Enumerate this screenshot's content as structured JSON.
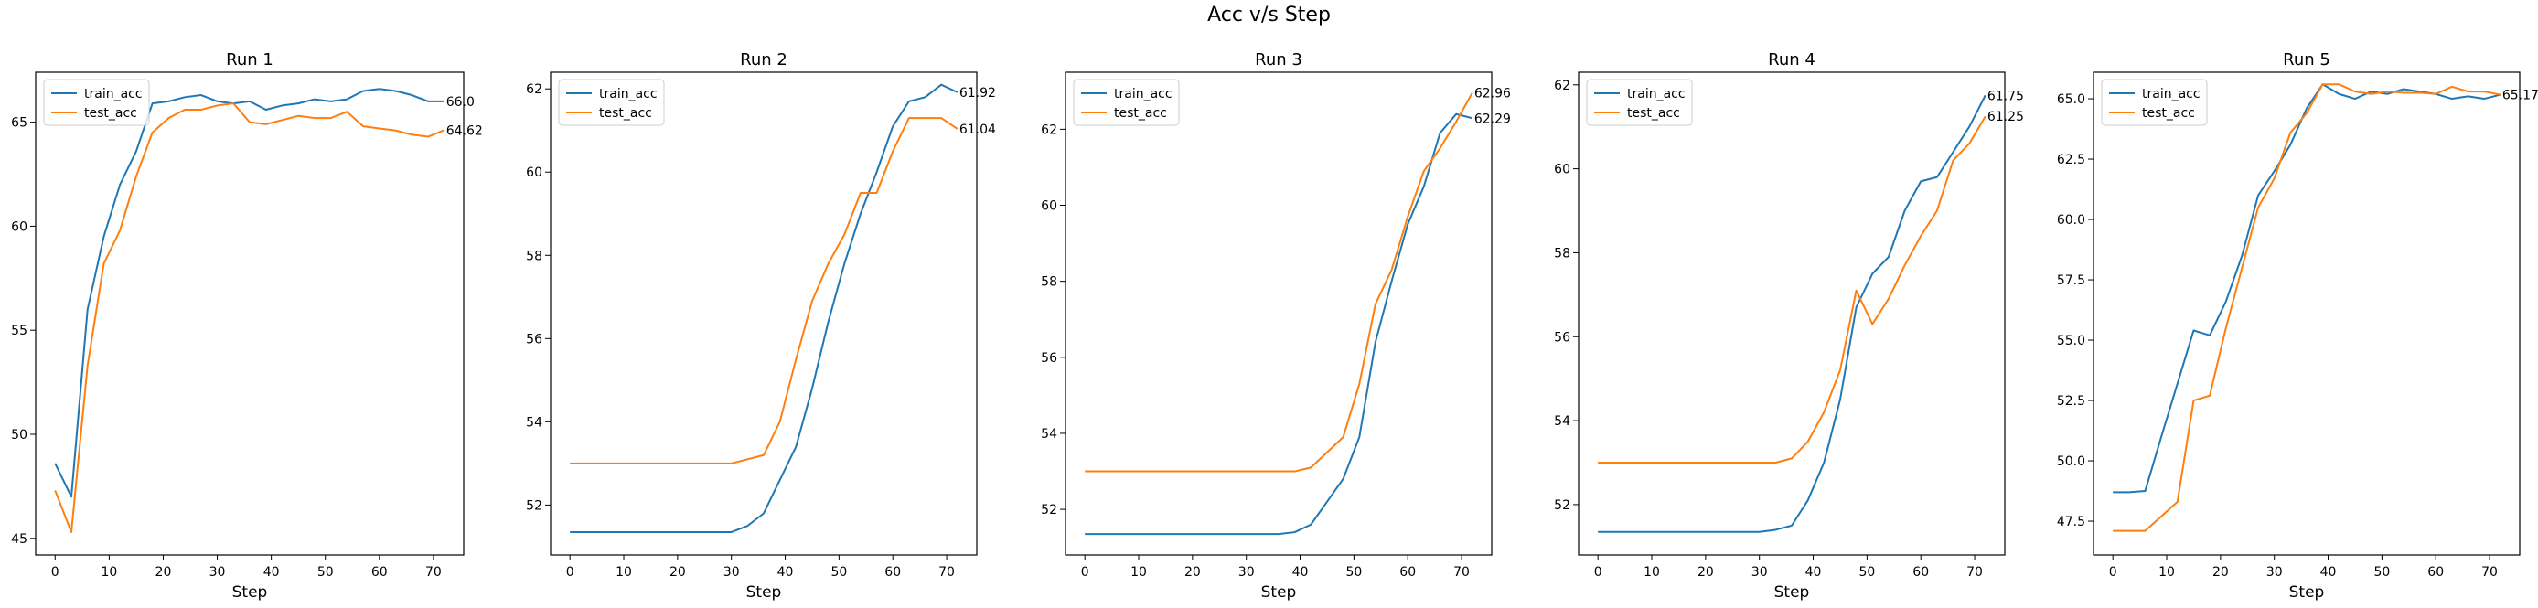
{
  "figure": {
    "title": "Acc v/s Step"
  },
  "chart_data": [
    {
      "type": "line",
      "title": "Run 1",
      "xlabel": "Step",
      "ylabel": "",
      "xlim": [
        -3.6,
        75.6
      ],
      "ylim": [
        44.2,
        67.4
      ],
      "xticks": [
        0,
        10,
        20,
        30,
        40,
        50,
        60,
        70
      ],
      "yticks": [
        45,
        50,
        55,
        60,
        65
      ],
      "ytick_labels": [
        "45",
        "50",
        "55",
        "60",
        "65"
      ],
      "legend": "upper left",
      "x": [
        0,
        3,
        6,
        9,
        12,
        15,
        18,
        21,
        24,
        27,
        30,
        33,
        36,
        39,
        42,
        45,
        48,
        51,
        54,
        57,
        60,
        63,
        66,
        69,
        72
      ],
      "series": [
        {
          "name": "train_acc",
          "color": "#1f77b4",
          "end_label": "66.0",
          "values": [
            48.6,
            47.0,
            56.0,
            59.5,
            62.0,
            63.6,
            65.9,
            66.0,
            66.2,
            66.3,
            66.0,
            65.9,
            66.0,
            65.6,
            65.8,
            65.9,
            66.1,
            66.0,
            66.1,
            66.5,
            66.6,
            66.5,
            66.3,
            66.0,
            66.0
          ]
        },
        {
          "name": "test_acc",
          "color": "#ff7f0e",
          "end_label": "64.62",
          "values": [
            47.3,
            45.3,
            53.3,
            58.2,
            59.8,
            62.4,
            64.5,
            65.2,
            65.6,
            65.6,
            65.8,
            65.9,
            65.0,
            64.9,
            65.1,
            65.3,
            65.2,
            65.2,
            65.5,
            64.8,
            64.7,
            64.6,
            64.4,
            64.3,
            64.62
          ]
        }
      ]
    },
    {
      "type": "line",
      "title": "Run 2",
      "xlabel": "Step",
      "ylabel": "",
      "xlim": [
        -3.6,
        75.6
      ],
      "ylim": [
        50.8,
        62.4
      ],
      "xticks": [
        0,
        10,
        20,
        30,
        40,
        50,
        60,
        70
      ],
      "yticks": [
        52,
        54,
        56,
        58,
        60,
        62
      ],
      "ytick_labels": [
        "52",
        "54",
        "56",
        "58",
        "60",
        "62"
      ],
      "legend": "upper left",
      "x": [
        0,
        3,
        6,
        9,
        12,
        15,
        18,
        21,
        24,
        27,
        30,
        33,
        36,
        39,
        42,
        45,
        48,
        51,
        54,
        57,
        60,
        63,
        66,
        69,
        72
      ],
      "series": [
        {
          "name": "train_acc",
          "color": "#1f77b4",
          "end_label": "61.92",
          "values": [
            51.35,
            51.35,
            51.35,
            51.35,
            51.35,
            51.35,
            51.35,
            51.35,
            51.35,
            51.35,
            51.35,
            51.5,
            51.8,
            52.6,
            53.4,
            54.8,
            56.4,
            57.8,
            59.0,
            60.0,
            61.1,
            61.7,
            61.8,
            62.1,
            61.92
          ]
        },
        {
          "name": "test_acc",
          "color": "#ff7f0e",
          "end_label": "61.04",
          "values": [
            53.0,
            53.0,
            53.0,
            53.0,
            53.0,
            53.0,
            53.0,
            53.0,
            53.0,
            53.0,
            53.0,
            53.1,
            53.2,
            54.0,
            55.5,
            56.9,
            57.8,
            58.5,
            59.5,
            59.5,
            60.5,
            61.3,
            61.3,
            61.3,
            61.04
          ]
        }
      ]
    },
    {
      "type": "line",
      "title": "Run 3",
      "xlabel": "Step",
      "ylabel": "",
      "xlim": [
        -3.6,
        75.6
      ],
      "ylim": [
        50.8,
        63.5
      ],
      "xticks": [
        0,
        10,
        20,
        30,
        40,
        50,
        60,
        70
      ],
      "yticks": [
        52,
        54,
        56,
        58,
        60,
        62
      ],
      "ytick_labels": [
        "52",
        "54",
        "56",
        "58",
        "60",
        "62"
      ],
      "legend": "upper left",
      "x": [
        0,
        3,
        6,
        9,
        12,
        15,
        18,
        21,
        24,
        27,
        30,
        33,
        36,
        39,
        42,
        45,
        48,
        51,
        54,
        57,
        60,
        63,
        66,
        69,
        72
      ],
      "series": [
        {
          "name": "train_acc",
          "color": "#1f77b4",
          "end_label": "62.29",
          "values": [
            51.35,
            51.35,
            51.35,
            51.35,
            51.35,
            51.35,
            51.35,
            51.35,
            51.35,
            51.35,
            51.35,
            51.35,
            51.35,
            51.4,
            51.6,
            52.2,
            52.8,
            53.9,
            56.4,
            58.0,
            59.5,
            60.5,
            61.9,
            62.4,
            62.29
          ]
        },
        {
          "name": "test_acc",
          "color": "#ff7f0e",
          "end_label": "62.96",
          "values": [
            53.0,
            53.0,
            53.0,
            53.0,
            53.0,
            53.0,
            53.0,
            53.0,
            53.0,
            53.0,
            53.0,
            53.0,
            53.0,
            53.0,
            53.1,
            53.5,
            53.9,
            55.3,
            57.4,
            58.3,
            59.7,
            60.9,
            61.5,
            62.2,
            62.96
          ]
        }
      ]
    },
    {
      "type": "line",
      "title": "Run 4",
      "xlabel": "Step",
      "ylabel": "",
      "xlim": [
        -3.6,
        75.6
      ],
      "ylim": [
        50.8,
        62.3
      ],
      "xticks": [
        0,
        10,
        20,
        30,
        40,
        50,
        60,
        70
      ],
      "yticks": [
        52,
        54,
        56,
        58,
        60,
        62
      ],
      "ytick_labels": [
        "52",
        "54",
        "56",
        "58",
        "60",
        "62"
      ],
      "legend": "upper left",
      "x": [
        0,
        3,
        6,
        9,
        12,
        15,
        18,
        21,
        24,
        27,
        30,
        33,
        36,
        39,
        42,
        45,
        48,
        51,
        54,
        57,
        60,
        63,
        66,
        69,
        72
      ],
      "series": [
        {
          "name": "train_acc",
          "color": "#1f77b4",
          "end_label": "61.75",
          "values": [
            51.35,
            51.35,
            51.35,
            51.35,
            51.35,
            51.35,
            51.35,
            51.35,
            51.35,
            51.35,
            51.35,
            51.4,
            51.5,
            52.1,
            53.0,
            54.5,
            56.7,
            57.5,
            57.9,
            59.0,
            59.7,
            59.8,
            60.4,
            61.0,
            61.75
          ]
        },
        {
          "name": "test_acc",
          "color": "#ff7f0e",
          "end_label": "61.25",
          "values": [
            53.0,
            53.0,
            53.0,
            53.0,
            53.0,
            53.0,
            53.0,
            53.0,
            53.0,
            53.0,
            53.0,
            53.0,
            53.1,
            53.5,
            54.2,
            55.2,
            57.1,
            56.3,
            56.9,
            57.7,
            58.4,
            59.0,
            60.2,
            60.6,
            61.25
          ]
        }
      ]
    },
    {
      "type": "line",
      "title": "Run 5",
      "xlabel": "Step",
      "ylabel": "",
      "xlim": [
        -3.6,
        75.6
      ],
      "ylim": [
        46.1,
        66.1
      ],
      "xticks": [
        0,
        10,
        20,
        30,
        40,
        50,
        60,
        70
      ],
      "yticks": [
        47.5,
        50.0,
        52.5,
        55.0,
        57.5,
        60.0,
        62.5,
        65.0
      ],
      "ytick_labels": [
        "47.5",
        "50.0",
        "52.5",
        "55.0",
        "57.5",
        "60.0",
        "62.5",
        "65.0"
      ],
      "legend": "upper left",
      "x": [
        0,
        3,
        6,
        9,
        12,
        15,
        18,
        21,
        24,
        27,
        30,
        33,
        36,
        39,
        42,
        45,
        48,
        51,
        54,
        57,
        60,
        63,
        66,
        69,
        72
      ],
      "series": [
        {
          "name": "train_acc",
          "color": "#1f77b4",
          "end_label": "",
          "values": [
            48.7,
            48.7,
            48.75,
            51.0,
            53.2,
            55.4,
            55.2,
            56.6,
            58.5,
            61.0,
            62.0,
            63.1,
            64.6,
            65.6,
            65.2,
            65.0,
            65.3,
            65.2,
            65.4,
            65.3,
            65.2,
            65.0,
            65.1,
            65.0,
            65.17
          ]
        },
        {
          "name": "test_acc",
          "color": "#ff7f0e",
          "end_label": "65.17",
          "values": [
            47.1,
            47.1,
            47.1,
            47.7,
            48.3,
            52.5,
            52.7,
            55.5,
            58.0,
            60.5,
            61.7,
            63.6,
            64.4,
            65.6,
            65.6,
            65.3,
            65.2,
            65.3,
            65.25,
            65.25,
            65.2,
            65.5,
            65.3,
            65.3,
            65.17
          ]
        }
      ]
    }
  ]
}
